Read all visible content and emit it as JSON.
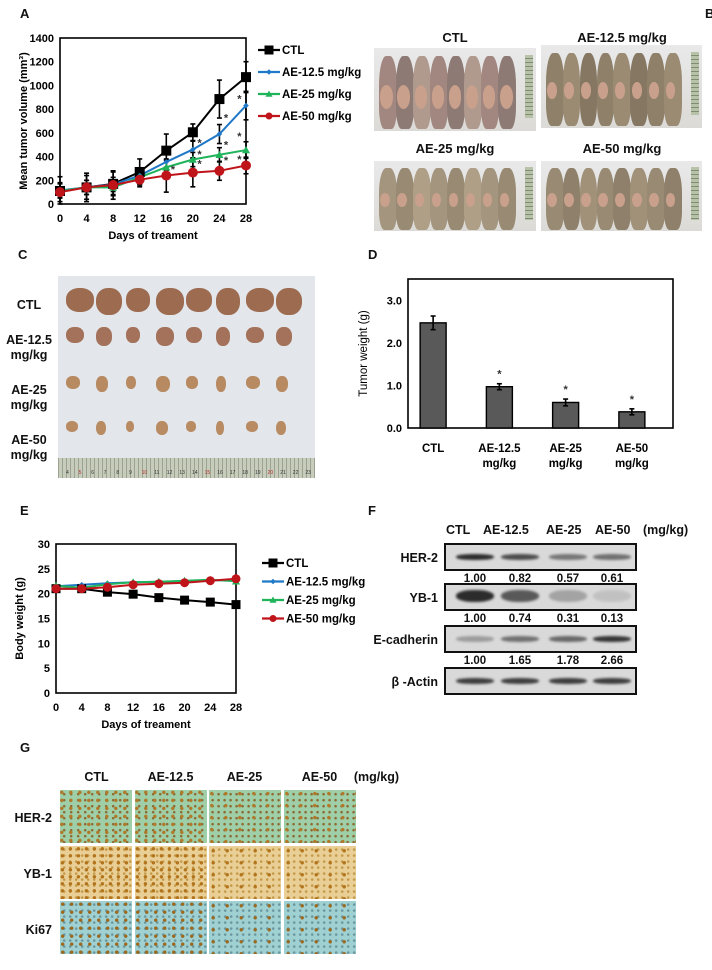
{
  "panels": {
    "A": "A",
    "B": "B",
    "C": "C",
    "D": "D",
    "E": "E",
    "F": "F",
    "G": "G"
  },
  "colors": {
    "ctl": "#000000",
    "ae12_5": "#1f78c8",
    "ae25": "#1fb35a",
    "ae50": "#c0141b",
    "bar_fill": "#595959"
  },
  "chart_data": [
    {
      "id": "A",
      "type": "line",
      "title": "",
      "xlabel": "Days of treament",
      "ylabel": "Mean tumor volume (mm³)",
      "x": [
        0,
        4,
        8,
        12,
        16,
        20,
        24,
        28
      ],
      "xticks": [
        "0",
        "4",
        "8",
        "12",
        "16",
        "20",
        "24",
        "28"
      ],
      "yticks": [
        "0",
        "200",
        "400",
        "600",
        "800",
        "1000",
        "1200",
        "1400"
      ],
      "ylim": [
        0,
        1400
      ],
      "legend": "right",
      "series": [
        {
          "name": "CTL",
          "marker": "square",
          "values": [
            110,
            140,
            170,
            270,
            450,
            605,
            885,
            1070
          ],
          "errors": [
            120,
            120,
            100,
            110,
            140,
            70,
            160,
            130
          ]
        },
        {
          "name": "AE-12.5 mg/kg",
          "marker": "diamond",
          "values": [
            115,
            140,
            165,
            240,
            355,
            460,
            590,
            830
          ],
          "errors": [
            60,
            60,
            60,
            60,
            70,
            70,
            80,
            120
          ]
        },
        {
          "name": "AE-25 mg/kg",
          "marker": "triangle",
          "values": [
            110,
            140,
            140,
            225,
            310,
            375,
            415,
            455
          ],
          "errors": [
            60,
            60,
            60,
            60,
            60,
            60,
            60,
            70
          ]
        },
        {
          "name": "AE-50 mg/kg",
          "marker": "circle",
          "values": [
            100,
            140,
            160,
            205,
            240,
            265,
            280,
            325
          ],
          "errors": [
            80,
            100,
            120,
            60,
            140,
            120,
            80,
            70
          ]
        }
      ],
      "annotations": [
        {
          "text": "*",
          "x": 21,
          "value": 520
        },
        {
          "text": "*",
          "x": 21,
          "value": 420
        },
        {
          "text": "*",
          "x": 21,
          "value": 340
        },
        {
          "text": "*",
          "x": 17,
          "value": 295
        },
        {
          "text": "*",
          "x": 25,
          "value": 730
        },
        {
          "text": "*",
          "x": 25,
          "value": 500
        },
        {
          "text": "*",
          "x": 25,
          "value": 370
        },
        {
          "text": "*",
          "x": 27,
          "value": 890
        },
        {
          "text": "*",
          "x": 27,
          "value": 575
        },
        {
          "text": "*",
          "x": 27,
          "value": 380
        }
      ]
    },
    {
      "id": "D",
      "type": "bar",
      "title": "",
      "xlabel": "",
      "ylabel": "Tumor weight (g)",
      "categories": [
        "CTL",
        "AE-12.5\nmg/kg",
        "AE-25\nmg/kg",
        "AE-50\nmg/kg"
      ],
      "category_lines": [
        [
          "CTL"
        ],
        [
          "AE-12.5",
          "mg/kg"
        ],
        [
          "AE-25",
          "mg/kg"
        ],
        [
          "AE-50",
          "mg/kg"
        ]
      ],
      "values": [
        2.47,
        0.97,
        0.6,
        0.38
      ],
      "errors": [
        0.16,
        0.07,
        0.08,
        0.07
      ],
      "significance": [
        "",
        "*",
        "*",
        "*"
      ],
      "yticks": [
        "0.0",
        "1.0",
        "2.0",
        "3.0"
      ],
      "ylim": [
        0,
        3.5
      ],
      "legend": "none"
    },
    {
      "id": "E",
      "type": "line",
      "title": "",
      "xlabel": "Days of treament",
      "ylabel": "Body weight (g)",
      "x": [
        0,
        4,
        8,
        12,
        16,
        20,
        24,
        28
      ],
      "xticks": [
        "0",
        "4",
        "8",
        "12",
        "16",
        "20",
        "24",
        "28"
      ],
      "yticks": [
        "0",
        "5",
        "10",
        "15",
        "20",
        "25",
        "30"
      ],
      "ylim": [
        0,
        30
      ],
      "legend": "right",
      "series": [
        {
          "name": "CTL",
          "marker": "square",
          "values": [
            21.0,
            21.0,
            20.3,
            19.9,
            19.2,
            18.7,
            18.3,
            17.8
          ]
        },
        {
          "name": "AE-12.5 mg/kg",
          "marker": "diamond",
          "values": [
            21.5,
            21.8,
            22.1,
            22.3,
            22.4,
            22.5,
            22.7,
            22.7
          ]
        },
        {
          "name": "AE-25 mg/kg",
          "marker": "triangle",
          "values": [
            21.6,
            21.2,
            21.9,
            22.3,
            22.4,
            22.6,
            22.8,
            22.5
          ]
        },
        {
          "name": "AE-50 mg/kg",
          "marker": "circle",
          "values": [
            21.0,
            21.0,
            21.3,
            21.8,
            22.0,
            22.2,
            22.6,
            23.0
          ]
        }
      ]
    }
  ],
  "panel_b": {
    "groups": [
      "CTL",
      "AE-12.5 mg/kg",
      "AE-25 mg/kg",
      "AE-50 mg/kg"
    ]
  },
  "panel_c": {
    "rows": [
      {
        "line1": "CTL",
        "line2": ""
      },
      {
        "line1": "AE-12.5",
        "line2": "mg/kg"
      },
      {
        "line1": "AE-25",
        "line2": "mg/kg"
      },
      {
        "line1": "AE-50",
        "line2": "mg/kg"
      }
    ],
    "ruler_ticks": [
      "4",
      "5",
      "6",
      "7",
      "8",
      "9",
      "10",
      "11",
      "12",
      "13",
      "14",
      "15",
      "16",
      "17",
      "18",
      "19",
      "20",
      "21",
      "22",
      "23"
    ]
  },
  "panel_f": {
    "columns": [
      "CTL",
      "AE-12.5",
      "AE-25",
      "AE-50"
    ],
    "unit": "(mg/kg)",
    "rows": [
      {
        "label": "HER-2",
        "quant": [
          "1.00",
          "0.82",
          "0.57",
          "0.61"
        ],
        "intensity": [
          1.0,
          0.82,
          0.57,
          0.61
        ]
      },
      {
        "label": "YB-1",
        "quant": [
          "1.00",
          "0.74",
          "0.31",
          "0.13"
        ],
        "intensity": [
          1.0,
          0.74,
          0.31,
          0.13
        ]
      },
      {
        "label": "E-cadherin",
        "quant": [
          "1.00",
          "1.65",
          "1.78",
          "2.66"
        ],
        "intensity": [
          0.35,
          0.6,
          0.65,
          0.95
        ]
      },
      {
        "label": "β -Actin",
        "quant": [],
        "intensity": [
          0.9,
          0.9,
          0.9,
          0.9
        ]
      }
    ]
  },
  "panel_g": {
    "columns": [
      "CTL",
      "AE-12.5",
      "AE-25",
      "AE-50"
    ],
    "unit": "(mg/kg)",
    "rows": [
      "HER-2",
      "YB-1",
      "Ki67"
    ]
  }
}
